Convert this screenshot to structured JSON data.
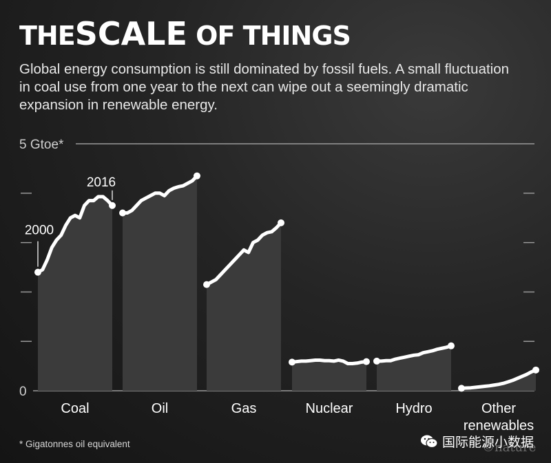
{
  "header": {
    "title_pre": "THE",
    "title_big": "SCALE",
    "title_post": "OF THINGS",
    "subtitle": "Global energy consumption is still dominated by fossil fuels. A small fluctuation in coal use from one year to the next can wipe out a seemingly dramatic expansion in renewable energy."
  },
  "footnote": "* Gigatonnes oil equivalent",
  "watermark": {
    "text": "国际能源小数据",
    "icon": "wechat-icon",
    "nature": "©nature"
  },
  "colors": {
    "background": "#1e1e1e",
    "area": "#3b3b3b",
    "line": "#ffffff",
    "grid": "#9a9a9a",
    "text": "#ffffff"
  },
  "chart_data": {
    "type": "area",
    "ylabel": "5 Gtoe*",
    "ylim": [
      0,
      5
    ],
    "yticks": [
      0,
      1,
      2,
      3,
      4,
      5
    ],
    "ytick_labels": [
      "0",
      "",
      "",
      "",
      "",
      "5 Gtoe*"
    ],
    "x_start": 2000,
    "x_end": 2016,
    "annotations": [
      {
        "text": "2000",
        "series": "Coal",
        "year": 2000
      },
      {
        "text": "2016",
        "series": "Coal",
        "year": 2016
      }
    ],
    "grid": true,
    "series": [
      {
        "name": "Coal",
        "values": [
          2.4,
          2.45,
          2.65,
          2.9,
          3.05,
          3.15,
          3.35,
          3.5,
          3.55,
          3.5,
          3.75,
          3.85,
          3.85,
          3.93,
          3.93,
          3.85,
          3.75
        ]
      },
      {
        "name": "Oil",
        "values": [
          3.6,
          3.6,
          3.65,
          3.75,
          3.85,
          3.9,
          3.95,
          4.0,
          4.0,
          3.95,
          4.05,
          4.1,
          4.13,
          4.15,
          4.2,
          4.25,
          4.35
        ]
      },
      {
        "name": "Gas",
        "values": [
          2.15,
          2.2,
          2.25,
          2.35,
          2.45,
          2.55,
          2.65,
          2.75,
          2.85,
          2.8,
          3.0,
          3.05,
          3.15,
          3.2,
          3.22,
          3.3,
          3.4
        ]
      },
      {
        "name": "Nuclear",
        "values": [
          0.58,
          0.59,
          0.6,
          0.6,
          0.61,
          0.62,
          0.62,
          0.61,
          0.61,
          0.6,
          0.62,
          0.6,
          0.55,
          0.55,
          0.56,
          0.58,
          0.59
        ]
      },
      {
        "name": "Hydro",
        "values": [
          0.6,
          0.6,
          0.61,
          0.61,
          0.64,
          0.66,
          0.68,
          0.7,
          0.72,
          0.73,
          0.77,
          0.79,
          0.81,
          0.84,
          0.86,
          0.88,
          0.91
        ]
      },
      {
        "name": "Other renewables",
        "values": [
          0.05,
          0.055,
          0.06,
          0.07,
          0.08,
          0.09,
          0.1,
          0.115,
          0.13,
          0.15,
          0.18,
          0.21,
          0.25,
          0.29,
          0.33,
          0.38,
          0.42
        ]
      }
    ],
    "category_labels": [
      "Coal",
      "Oil",
      "Gas",
      "Nuclear",
      "Hydro",
      "Other renewables"
    ]
  }
}
